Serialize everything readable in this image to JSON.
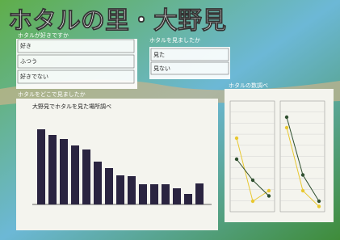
{
  "poster": {
    "title": "ホタルの里・大野見",
    "survey_like": {
      "question": "ホタルが好きですか",
      "rows": [
        "好き",
        "ふつう",
        "好きでない"
      ]
    },
    "survey_seen": {
      "question": "ホタルを見ましたか",
      "rows": [
        "見た",
        "見ない"
      ]
    },
    "where_label": "ホタルをどこで見ましたか",
    "bar_chart": {
      "title": "大野見でホタルを見た場所調べ",
      "values": [
        93,
        86,
        81,
        73,
        68,
        53,
        45,
        36,
        35,
        25,
        25,
        25,
        20,
        13,
        26
      ]
    },
    "count_chart": {
      "title": "ホタルの数調べ",
      "panels": [
        {
          "series": [
            {
              "color": "#e8c830",
              "values": [
                14,
                2,
                4
              ]
            },
            {
              "color": "#2f4f2f",
              "values": [
                10,
                6,
                3
              ]
            }
          ]
        },
        {
          "series": [
            {
              "color": "#e8c830",
              "values": [
                16,
                4,
                1
              ]
            },
            {
              "color": "#2f4f2f",
              "values": [
                18,
                7,
                2
              ]
            }
          ]
        }
      ]
    }
  }
}
